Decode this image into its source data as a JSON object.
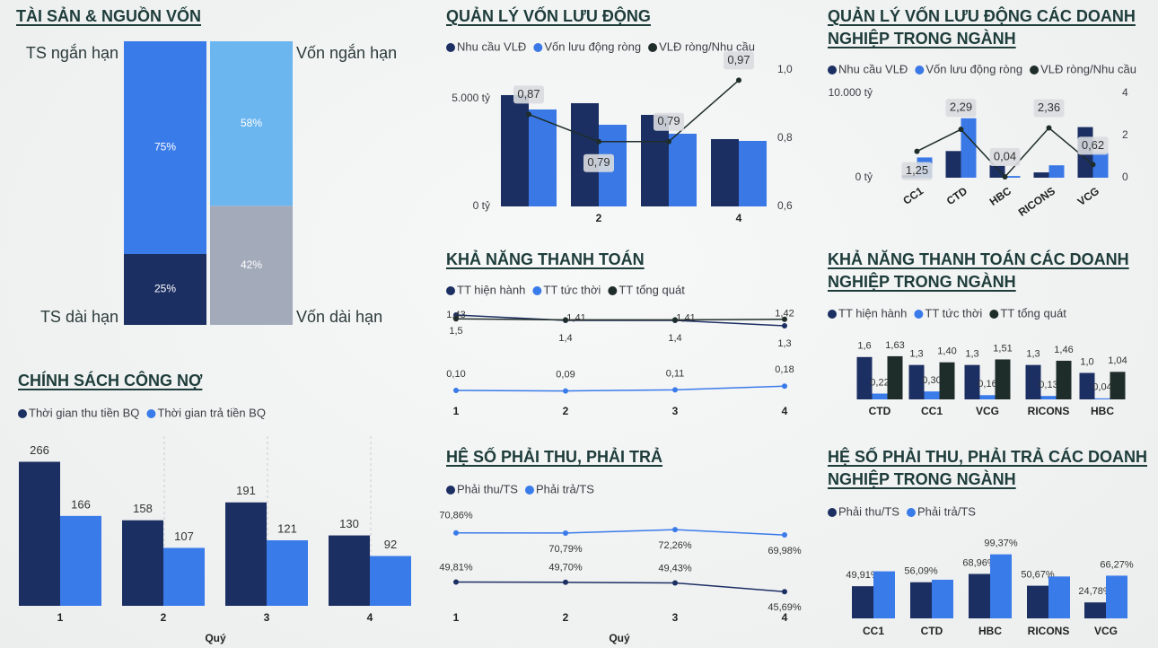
{
  "chart_data": [
    {
      "type": "stacked_column",
      "title": "TÀI SẢN & NGUỒN VỐN",
      "columns": [
        {
          "names": [
            "TS ngắn hạn",
            "TS dài hạn"
          ],
          "values": [
            75,
            25
          ],
          "value_labels": [
            "75%",
            "25%"
          ],
          "colors": [
            "#3a7bea",
            "#1c2f63"
          ]
        },
        {
          "names": [
            "Vốn ngắn hạn",
            "Vốn dài hạn"
          ],
          "values": [
            58,
            42
          ],
          "value_labels": [
            "58%",
            "42%"
          ],
          "colors": [
            "#6cb6f0",
            "#a3abbb"
          ]
        }
      ]
    },
    {
      "type": "combo",
      "title": "QUẢN LÝ VỐN LƯU ĐỘNG",
      "categories": [
        null,
        "2",
        null,
        "4"
      ],
      "series": [
        {
          "name": "Nhu cầu VLĐ",
          "color": "#1c2f63",
          "values": [
            5167,
            4792,
            4250,
            3125
          ]
        },
        {
          "name": "Vốn lưu động ròng",
          "color": "#3a78e6",
          "values": [
            4500,
            3792,
            3375,
            3042
          ]
        },
        {
          "name": "VLĐ ròng/Nhu cầu",
          "color": "#1f2d2a",
          "type": "line",
          "axis": "y2",
          "values": [
            0.87,
            0.79,
            0.79,
            0.97
          ],
          "value_labels": [
            "0,87",
            "0,79",
            "0,79",
            "0,97"
          ]
        }
      ],
      "ylim": [
        0,
        6333
      ],
      "yticks": [
        {
          "value": 0,
          "label": "0 tỷ"
        },
        {
          "value": 5000,
          "label": "5.000 tỷ"
        }
      ],
      "y2lim": [
        0.6,
        1.0
      ],
      "y2ticks": [
        {
          "value": 0.6,
          "label": "0,6"
        },
        {
          "value": 0.8,
          "label": "0,8"
        },
        {
          "value": 1.0,
          "label": "1,0"
        }
      ]
    },
    {
      "type": "combo",
      "title": "QUẢN LÝ VỐN LƯU ĐỘNG CÁC DOANH NGHIỆP TRONG NGÀNH",
      "categories": [
        "CC1",
        "CTD",
        "HBC",
        "RICONS",
        "VCG"
      ],
      "series": [
        {
          "name": "Nhu cầu VLĐ",
          "color": "#1c2f63",
          "values": [
            300,
            3160,
            1470,
            630,
            6000
          ]
        },
        {
          "name": "Vốn lưu động ròng",
          "color": "#3a78e6",
          "values": [
            2400,
            7050,
            200,
            1470,
            2950
          ]
        },
        {
          "name": "VLĐ ròng/Nhu cầu",
          "color": "#1f2d2a",
          "type": "line",
          "axis": "y2",
          "values": [
            1.25,
            2.29,
            0.04,
            2.36,
            0.62
          ],
          "value_labels": [
            "1,25",
            "2,29",
            "0,04",
            "2,36",
            "0,62"
          ]
        }
      ],
      "ylim": [
        0,
        10000
      ],
      "yticks": [
        {
          "value": 0,
          "label": "0 tỷ"
        },
        {
          "value": 10000,
          "label": "10.000 tỷ"
        }
      ],
      "y2lim": [
        0,
        4
      ],
      "y2ticks": [
        0,
        2,
        4
      ]
    },
    {
      "type": "line",
      "title": "KHẢ NĂNG THANH TOÁN",
      "categories": [
        "1",
        "2",
        "3",
        "4"
      ],
      "series": [
        {
          "name": "TT hiện hành",
          "color": "#1c2f63",
          "values": [
            1.5,
            1.4,
            1.4,
            1.3
          ],
          "value_labels": [
            "1,5",
            "1,4",
            "1,4",
            "1,3"
          ]
        },
        {
          "name": "TT tức thời",
          "color": "#3a7bea",
          "values": [
            0.1,
            0.09,
            0.11,
            0.18
          ],
          "value_labels": [
            "0,10",
            "0,09",
            "0,11",
            "0,18"
          ]
        },
        {
          "name": "TT tổng quát",
          "color": "#1f2d2a",
          "values": [
            1.43,
            1.41,
            1.41,
            1.42
          ],
          "value_labels": [
            "1,43",
            "1,41",
            "1,41",
            "1,42"
          ]
        }
      ],
      "ylim": [
        0,
        1.6
      ]
    },
    {
      "type": "bar",
      "title": "KHẢ NĂNG THANH TOÁN CÁC DOANH NGHIỆP TRONG NGÀNH",
      "categories": [
        "CTD",
        "CC1",
        "VCG",
        "RICONS",
        "HBC"
      ],
      "series": [
        {
          "name": "TT hiện hành",
          "color": "#1c2f63",
          "values": [
            1.6,
            1.3,
            1.3,
            1.3,
            1.0
          ],
          "value_labels": [
            "1,6",
            "1,3",
            "1,3",
            "1,3",
            "1,0"
          ]
        },
        {
          "name": "TT tức thời",
          "color": "#3a7bea",
          "values": [
            0.22,
            0.3,
            0.16,
            0.13,
            0.04
          ],
          "value_labels": [
            "0,22",
            "0,30",
            "0,16",
            "0,13",
            "0,04"
          ]
        },
        {
          "name": "TT tổng quát",
          "color": "#1f2d2a",
          "values": [
            1.63,
            1.4,
            1.51,
            1.46,
            1.04
          ],
          "value_labels": [
            "1,63",
            "1,40",
            "1,51",
            "1,46",
            "1,04"
          ]
        }
      ],
      "ylim": [
        0,
        2
      ]
    },
    {
      "type": "bar",
      "title": "CHÍNH SÁCH CÔNG NỢ",
      "categories": [
        "1",
        "2",
        "3",
        "4"
      ],
      "x_title": "Quý",
      "series": [
        {
          "name": "Thời gian thu tiền BQ",
          "color": "#1c2f63",
          "values": [
            266,
            158,
            191,
            130
          ]
        },
        {
          "name": "Thời gian trả tiền BQ",
          "color": "#3a7bea",
          "values": [
            166,
            107,
            121,
            92
          ]
        }
      ],
      "ylim": [
        0,
        300
      ]
    },
    {
      "type": "line",
      "title": "HỆ SỐ PHẢI THU, PHẢI TRẢ",
      "categories": [
        "1",
        "2",
        "3",
        "4"
      ],
      "x_title": "Quý",
      "series": [
        {
          "name": "Phải thu/TS",
          "color": "#1c2f63",
          "values": [
            49.81,
            49.7,
            49.43,
            45.69
          ],
          "value_labels": [
            "49,81%",
            "49,70%",
            "49,43%",
            "45,69%"
          ]
        },
        {
          "name": "Phải trả/TS",
          "color": "#3a7bea",
          "values": [
            70.86,
            70.79,
            72.26,
            69.98
          ],
          "value_labels": [
            "70,86%",
            "70,79%",
            "72,26%",
            "69,98%"
          ]
        }
      ],
      "ylim": [
        40,
        75
      ]
    },
    {
      "type": "bar",
      "title": "HỆ SỐ PHẢI THU, PHẢI TRẢ CÁC DOANH NGHIỆP TRONG NGÀNH",
      "categories": [
        "CC1",
        "CTD",
        "HBC",
        "RICONS",
        "VCG"
      ],
      "series": [
        {
          "name": "Phải thu/TS",
          "color": "#1c2f63",
          "values": [
            49.91,
            56.09,
            68.96,
            50.67,
            24.78
          ],
          "value_labels": [
            "49,91%",
            "56,09%",
            "68,96%",
            "50,67%",
            "24,78%"
          ]
        },
        {
          "name": "Phải trả/TS",
          "color": "#3a7bea",
          "values": [
            73,
            60,
            99.37,
            65,
            66.27
          ],
          "value_labels": [
            null,
            null,
            "99,37%",
            null,
            "66,27%"
          ]
        }
      ],
      "ylim": [
        0,
        110
      ]
    }
  ]
}
